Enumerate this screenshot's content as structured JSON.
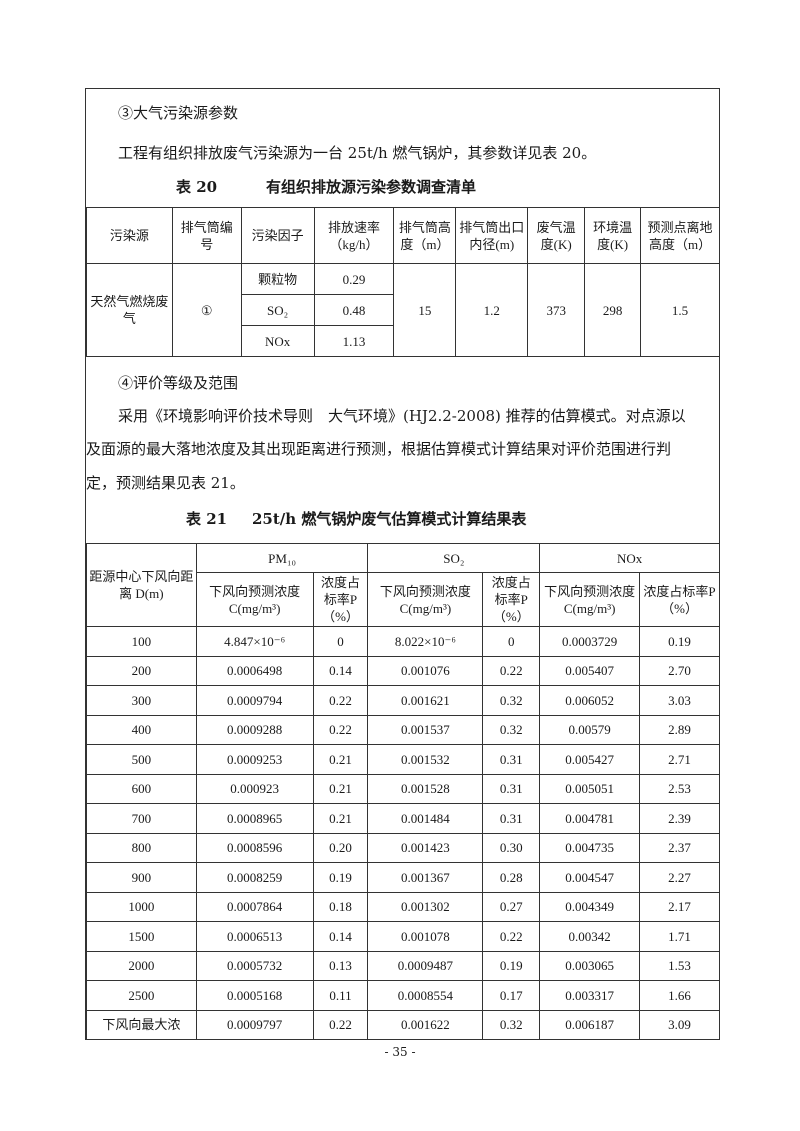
{
  "section3": {
    "heading": "③大气污染源参数",
    "text": "工程有组织排放废气污染源为一台 25t/h 燃气锅炉，其参数详见表 20。"
  },
  "table20": {
    "label": "表 20",
    "title": "有组织排放源污染参数调查清单",
    "headers": [
      "污染源",
      "排气筒编号",
      "污染因子",
      "排放速率（kg/h）",
      "排气筒高度（m）",
      "排气筒出口内径(m)",
      "废气温度(K)",
      "环境温度(K)",
      "预测点离地高度（m）"
    ],
    "source": "天然气燃烧废气",
    "stack_no": "①",
    "pollutants": [
      {
        "name": "颗粒物",
        "rate": "0.29"
      },
      {
        "name": "SO₂",
        "rate": "0.48"
      },
      {
        "name": "NOx",
        "rate": "1.13"
      }
    ],
    "height": "15",
    "diameter": "1.2",
    "gas_temp": "373",
    "env_temp": "298",
    "receptor_height": "1.5"
  },
  "section4": {
    "heading": "④评价等级及范围",
    "lines": [
      "采用《环境影响评价技术导则　大气环境》(HJ2.2-2008) 推荐的估算模式。对点源以",
      "及面源的最大落地浓度及其出现距离进行预测，根据估算模式计算结果对评价范围进行判",
      "定，预测结果见表 21。"
    ]
  },
  "table21": {
    "label": "表 21",
    "title": "25t/h 燃气锅炉废气估算模式计算结果表",
    "distance_header": "距源中心下风向距离 D(m)",
    "groups": [
      "PM₁₀",
      "SO₂",
      "NOx"
    ],
    "subheaders": [
      "下风向预测浓度C(mg/m³)",
      "浓度占标率P（%）",
      "下风向预测浓度C(mg/m³)",
      "浓度占标率P（%）",
      "下风向预测浓度C(mg/m³)",
      "浓度占标率P（%）"
    ],
    "rows": [
      [
        "100",
        "4.847×10⁻⁶",
        "0",
        "8.022×10⁻⁶",
        "0",
        "0.0003729",
        "0.19"
      ],
      [
        "200",
        "0.0006498",
        "0.14",
        "0.001076",
        "0.22",
        "0.005407",
        "2.70"
      ],
      [
        "300",
        "0.0009794",
        "0.22",
        "0.001621",
        "0.32",
        "0.006052",
        "3.03"
      ],
      [
        "400",
        "0.0009288",
        "0.22",
        "0.001537",
        "0.32",
        "0.00579",
        "2.89"
      ],
      [
        "500",
        "0.0009253",
        "0.21",
        "0.001532",
        "0.31",
        "0.005427",
        "2.71"
      ],
      [
        "600",
        "0.000923",
        "0.21",
        "0.001528",
        "0.31",
        "0.005051",
        "2.53"
      ],
      [
        "700",
        "0.0008965",
        "0.21",
        "0.001484",
        "0.31",
        "0.004781",
        "2.39"
      ],
      [
        "800",
        "0.0008596",
        "0.20",
        "0.001423",
        "0.30",
        "0.004735",
        "2.37"
      ],
      [
        "900",
        "0.0008259",
        "0.19",
        "0.001367",
        "0.28",
        "0.004547",
        "2.27"
      ],
      [
        "1000",
        "0.0007864",
        "0.18",
        "0.001302",
        "0.27",
        "0.004349",
        "2.17"
      ],
      [
        "1500",
        "0.0006513",
        "0.14",
        "0.001078",
        "0.22",
        "0.00342",
        "1.71"
      ],
      [
        "2000",
        "0.0005732",
        "0.13",
        "0.0009487",
        "0.19",
        "0.003065",
        "1.53"
      ],
      [
        "2500",
        "0.0005168",
        "0.11",
        "0.0008554",
        "0.17",
        "0.003317",
        "1.66"
      ],
      [
        "下风向最大浓",
        "0.0009797",
        "0.22",
        "0.001622",
        "0.32",
        "0.006187",
        "3.09"
      ]
    ]
  },
  "page_number": "- 35 -"
}
